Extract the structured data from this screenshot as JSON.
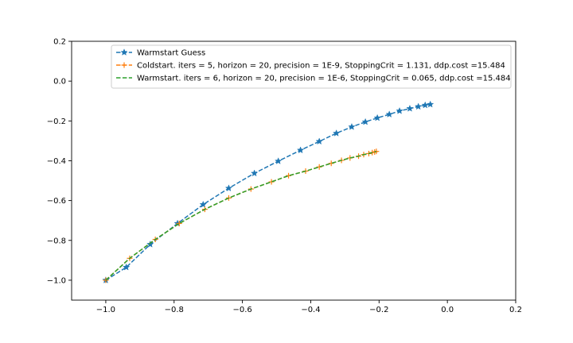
{
  "chart_data": {
    "type": "line",
    "title": "",
    "xlabel": "",
    "ylabel": "",
    "xlim": [
      -1.1,
      0.2
    ],
    "ylim": [
      -1.1,
      0.2
    ],
    "xticks": [
      -1.0,
      -0.8,
      -0.6,
      -0.4,
      -0.2,
      0.0,
      0.2
    ],
    "yticks": [
      -1.0,
      -0.8,
      -0.6,
      -0.4,
      -0.2,
      0.0,
      0.2
    ],
    "xtick_labels": [
      "−1.0",
      "−0.8",
      "−0.6",
      "−0.4",
      "−0.2",
      "0.0",
      "0.2"
    ],
    "ytick_labels": [
      "−1.0",
      "−0.8",
      "−0.6",
      "−0.4",
      "−0.2",
      "0.0",
      "0.2"
    ],
    "grid": false,
    "legend_position": "top-right",
    "series": [
      {
        "name": "Warmstart Guess",
        "color": "#1f77b4",
        "marker": "star",
        "linestyle": "dashed",
        "points": [
          [
            -1.0,
            -1.0
          ],
          [
            -0.94,
            -0.935
          ],
          [
            -0.87,
            -0.82
          ],
          [
            -0.79,
            -0.715
          ],
          [
            -0.715,
            -0.62
          ],
          [
            -0.64,
            -0.538
          ],
          [
            -0.565,
            -0.463
          ],
          [
            -0.495,
            -0.402
          ],
          [
            -0.43,
            -0.347
          ],
          [
            -0.375,
            -0.303
          ],
          [
            -0.325,
            -0.262
          ],
          [
            -0.28,
            -0.23
          ],
          [
            -0.24,
            -0.205
          ],
          [
            -0.205,
            -0.185
          ],
          [
            -0.17,
            -0.167
          ],
          [
            -0.14,
            -0.15
          ],
          [
            -0.11,
            -0.138
          ],
          [
            -0.085,
            -0.128
          ],
          [
            -0.065,
            -0.121
          ],
          [
            -0.05,
            -0.117
          ]
        ]
      },
      {
        "name": "Coldstart. iters = 5, horizon = 20, precision = 1E-9, StoppingCrit = 1.131, ddp.cost =15.484",
        "color": "#ff7f0e",
        "marker": "plus",
        "linestyle": "dashed",
        "points": [
          [
            -1.0,
            -1.0
          ],
          [
            -0.93,
            -0.89
          ],
          [
            -0.855,
            -0.795
          ],
          [
            -0.785,
            -0.715
          ],
          [
            -0.71,
            -0.644
          ],
          [
            -0.64,
            -0.587
          ],
          [
            -0.575,
            -0.542
          ],
          [
            -0.515,
            -0.506
          ],
          [
            -0.465,
            -0.475
          ],
          [
            -0.415,
            -0.452
          ],
          [
            -0.375,
            -0.431
          ],
          [
            -0.34,
            -0.413
          ],
          [
            -0.31,
            -0.398
          ],
          [
            -0.285,
            -0.386
          ],
          [
            -0.26,
            -0.377
          ],
          [
            -0.245,
            -0.369
          ],
          [
            -0.23,
            -0.364
          ],
          [
            -0.22,
            -0.359
          ],
          [
            -0.213,
            -0.356
          ],
          [
            -0.208,
            -0.353
          ]
        ]
      },
      {
        "name": "Warmstart. iters = 6, horizon = 20, precision = 1E-6, StoppingCrit = 0.065, ddp.cost =15.484",
        "color": "#2ca02c",
        "marker": "none",
        "linestyle": "dashed",
        "points": [
          [
            -1.0,
            -1.0
          ],
          [
            -0.93,
            -0.89
          ],
          [
            -0.855,
            -0.795
          ],
          [
            -0.785,
            -0.715
          ],
          [
            -0.71,
            -0.644
          ],
          [
            -0.64,
            -0.587
          ],
          [
            -0.575,
            -0.542
          ],
          [
            -0.515,
            -0.506
          ],
          [
            -0.465,
            -0.475
          ],
          [
            -0.415,
            -0.452
          ],
          [
            -0.375,
            -0.431
          ],
          [
            -0.34,
            -0.413
          ],
          [
            -0.31,
            -0.398
          ],
          [
            -0.285,
            -0.386
          ],
          [
            -0.26,
            -0.377
          ],
          [
            -0.245,
            -0.369
          ],
          [
            -0.23,
            -0.364
          ],
          [
            -0.22,
            -0.359
          ],
          [
            -0.213,
            -0.356
          ],
          [
            -0.208,
            -0.353
          ]
        ]
      }
    ]
  }
}
